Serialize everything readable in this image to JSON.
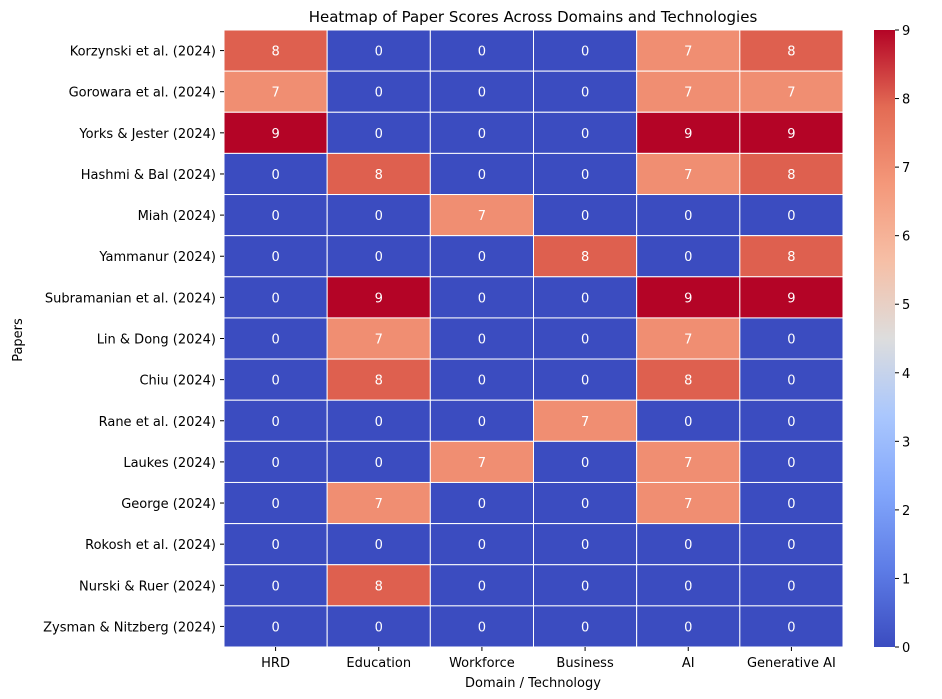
{
  "chart_data": {
    "type": "heatmap",
    "title": "Heatmap of Paper Scores Across Domains and Technologies",
    "xlabel": "Domain / Technology",
    "ylabel": "Papers",
    "columns": [
      "HRD",
      "Education",
      "Workforce",
      "Business",
      "AI",
      "Generative AI"
    ],
    "rows": [
      "Korzynski et al. (2024)",
      "Gorowara et al. (2024)",
      "Yorks & Jester (2024)",
      "Hashmi & Bal (2024)",
      "Miah (2024)",
      "Yammanur (2024)",
      "Subramanian et al. (2024)",
      "Lin & Dong (2024)",
      "Chiu (2024)",
      "Rane et al. (2024)",
      "Laukes (2024)",
      "George (2024)",
      "Rokosh et al. (2024)",
      "Nurski & Ruer (2024)",
      "Zysman & Nitzberg (2024)"
    ],
    "values": [
      [
        8,
        0,
        0,
        0,
        7,
        8
      ],
      [
        7,
        0,
        0,
        0,
        7,
        7
      ],
      [
        9,
        0,
        0,
        0,
        9,
        9
      ],
      [
        0,
        8,
        0,
        0,
        7,
        8
      ],
      [
        0,
        0,
        7,
        0,
        0,
        0
      ],
      [
        0,
        0,
        0,
        8,
        0,
        8
      ],
      [
        0,
        9,
        0,
        0,
        9,
        9
      ],
      [
        0,
        7,
        0,
        0,
        7,
        0
      ],
      [
        0,
        8,
        0,
        0,
        8,
        0
      ],
      [
        0,
        0,
        0,
        7,
        0,
        0
      ],
      [
        0,
        0,
        7,
        0,
        7,
        0
      ],
      [
        0,
        7,
        0,
        0,
        7,
        0
      ],
      [
        0,
        0,
        0,
        0,
        0,
        0
      ],
      [
        0,
        8,
        0,
        0,
        0,
        0
      ],
      [
        0,
        0,
        0,
        0,
        0,
        0
      ]
    ],
    "colorbar": {
      "min": 0,
      "max": 9,
      "ticks": [
        0,
        1,
        2,
        3,
        4,
        5,
        6,
        7,
        8,
        9
      ],
      "colormap": "coolwarm"
    },
    "colors": {
      "low": "#3b4cc0",
      "mid": "#dddddd",
      "high": "#b40426"
    },
    "legend": "right"
  }
}
